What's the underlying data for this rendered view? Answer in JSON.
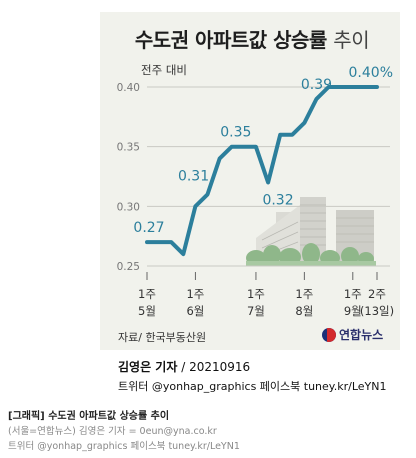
{
  "header": {
    "title_main": "수도권 아파트값 상승률",
    "title_suffix": "추이"
  },
  "chart_data": {
    "type": "line",
    "ylabel": "전주 대비",
    "yticks": [
      "0.25",
      "0.30",
      "0.35",
      "0.40"
    ],
    "ylim": [
      0.25,
      0.4
    ],
    "x_tick_top": [
      "1주",
      "1주",
      "1주",
      "1주",
      "1주",
      "2주"
    ],
    "x_tick_bottom": [
      "5월",
      "6월",
      "7월",
      "8월",
      "9월",
      "(13일)"
    ],
    "x_tick_index": [
      0,
      4,
      9,
      13,
      17,
      19
    ],
    "values": [
      0.27,
      0.27,
      0.27,
      0.26,
      0.3,
      0.31,
      0.34,
      0.35,
      0.35,
      0.35,
      0.32,
      0.36,
      0.36,
      0.37,
      0.39,
      0.4,
      0.4,
      0.4,
      0.4,
      0.4
    ],
    "data_labels": [
      {
        "index": 0,
        "text": "0.27"
      },
      {
        "index": 5,
        "text": "0.31"
      },
      {
        "index": 8,
        "text": "0.35"
      },
      {
        "index": 10,
        "text": "0.32"
      },
      {
        "index": 14,
        "text": "0.39"
      },
      {
        "index": 19,
        "text": "0.40%"
      }
    ],
    "line_color": "#2c7f9c",
    "grid": true
  },
  "source": "자료/ 한국부동산원",
  "logo": "연합뉴스",
  "reporter": {
    "name": "김영은 기자",
    "date": "/ 20210916"
  },
  "social": "트위터 @yonhap_graphics  페이스북 tuney.kr/LeYN1",
  "caption": {
    "title": "[그래픽] 수도권 아파트값 상승률 추이",
    "credit": "(서울=연합뉴스) 김영은 기자 = 0eun@yna.co.kr",
    "social": "트위터 @yonhap_graphics 페이스북 tuney.kr/LeYN1"
  }
}
